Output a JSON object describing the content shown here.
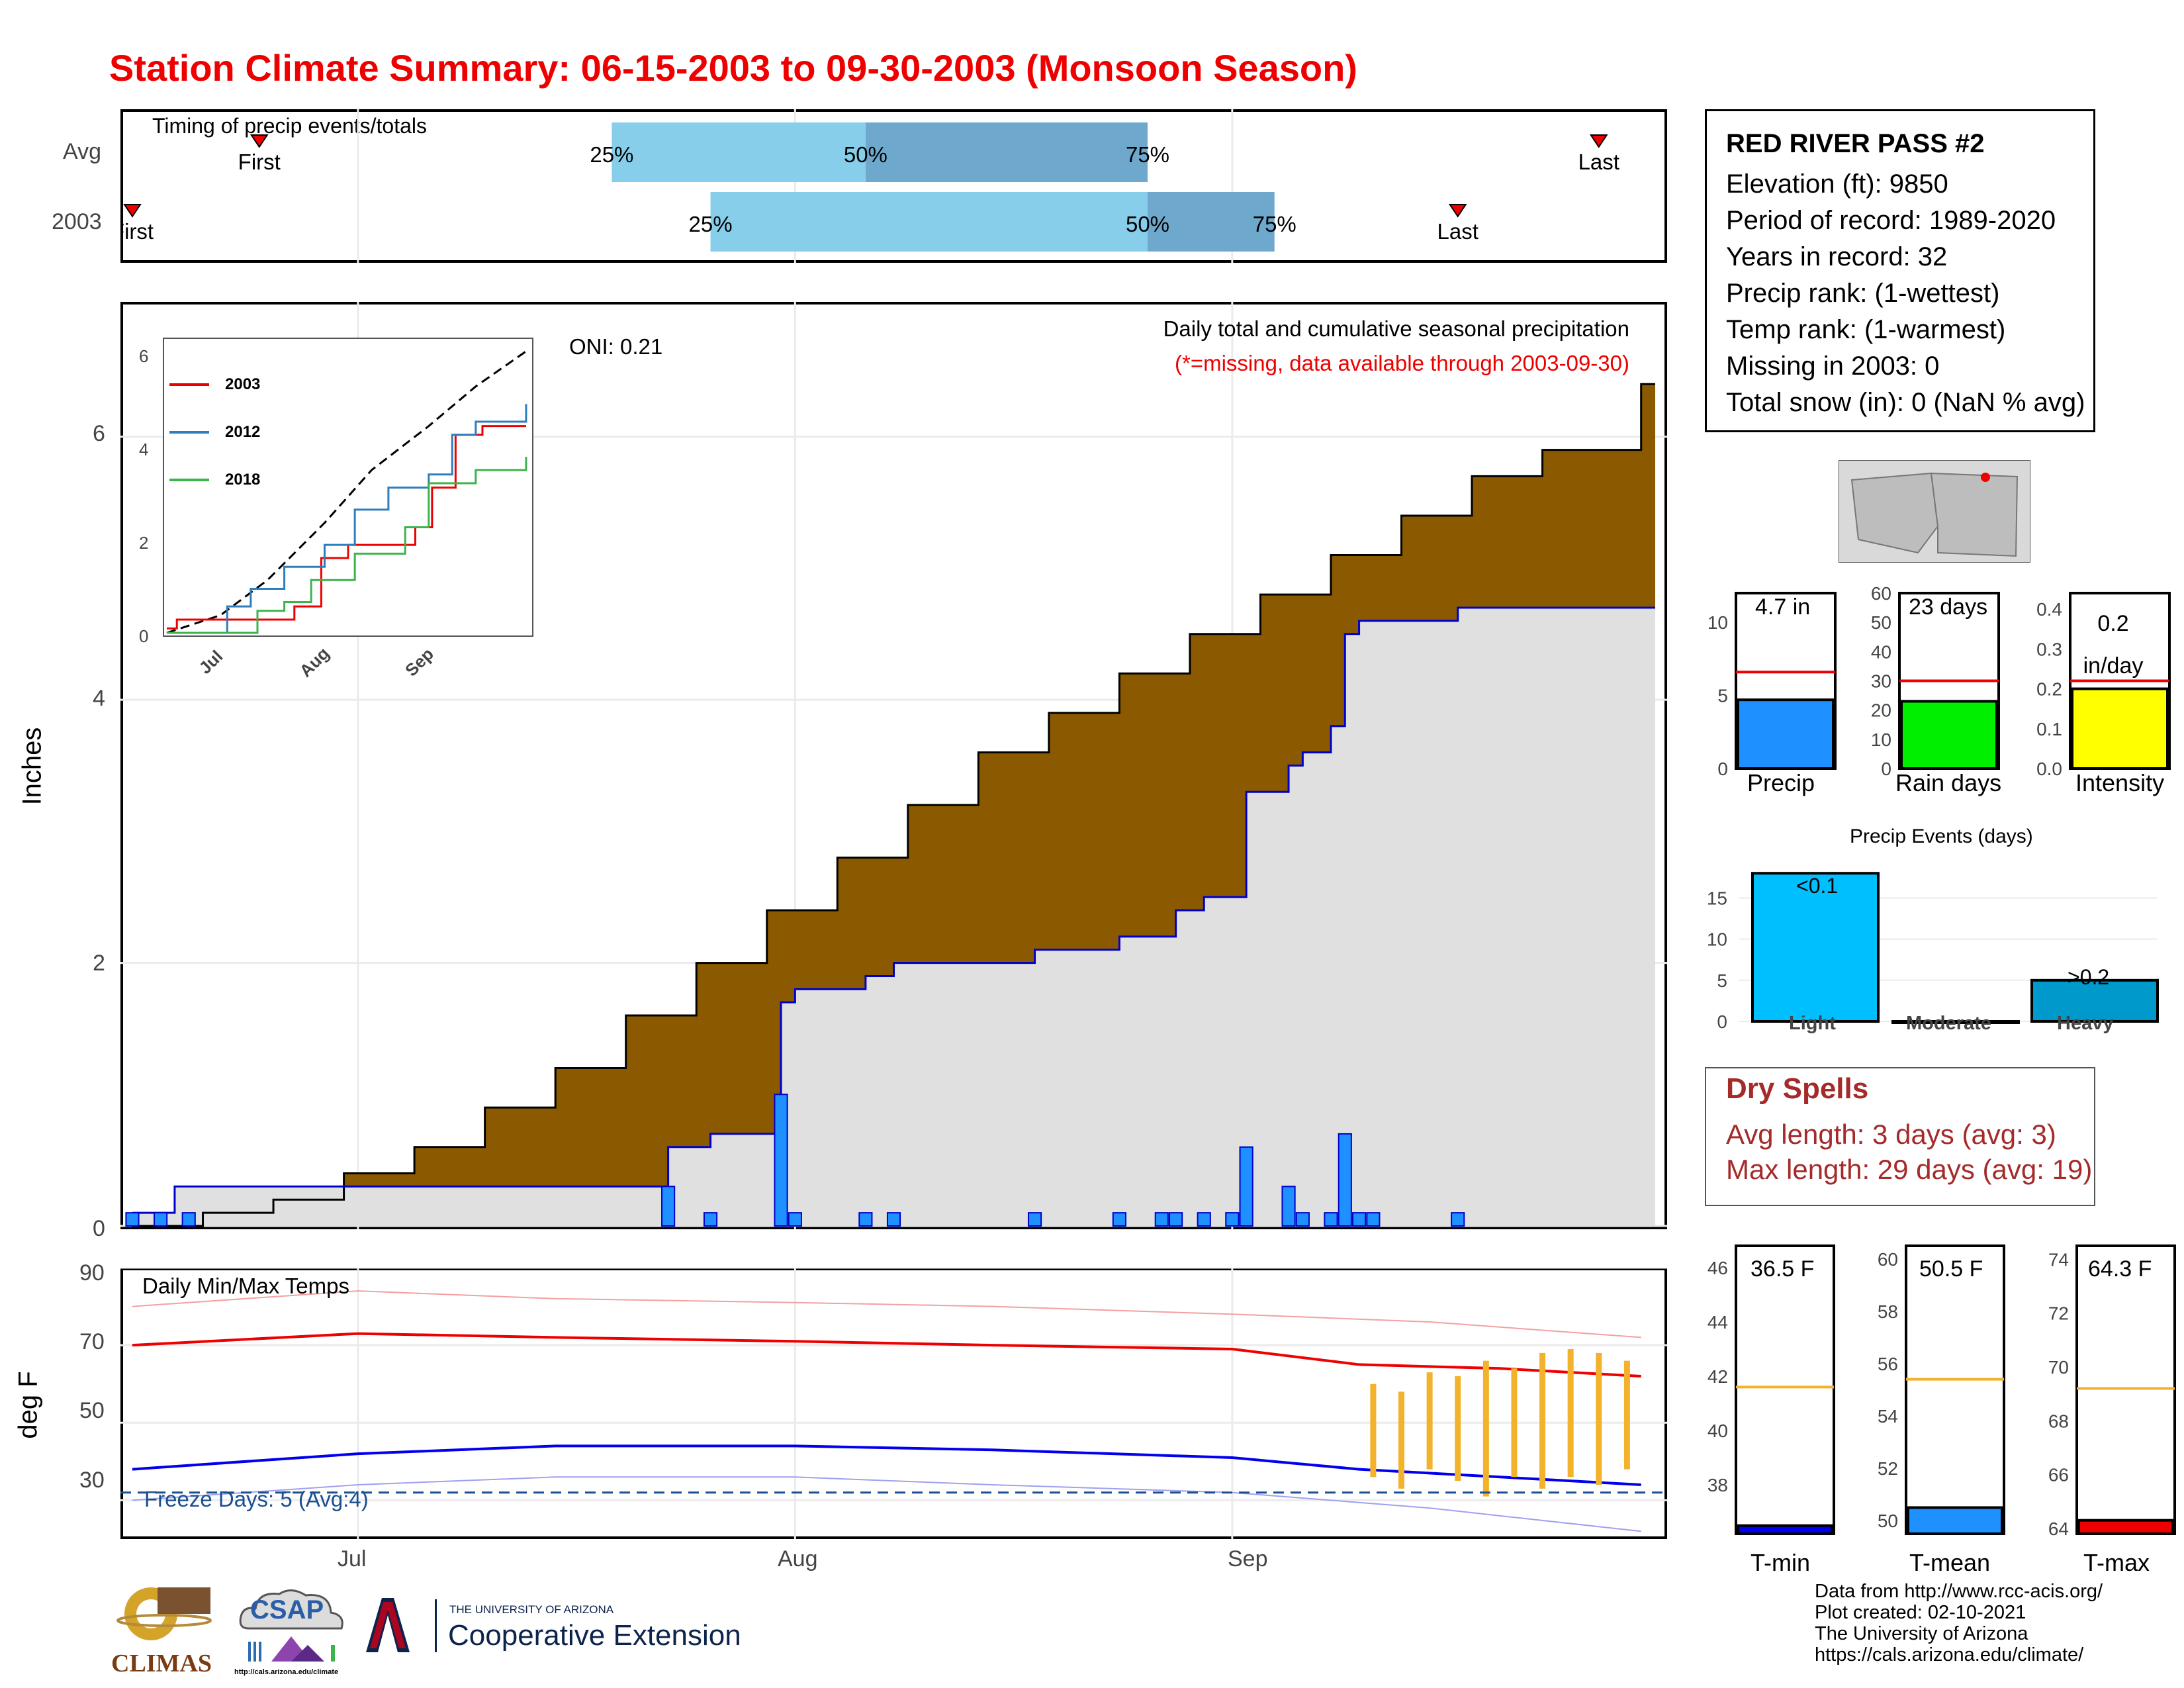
{
  "title": "Station Climate Summary: 06-15-2003 to 09-30-2003 (Monsoon Season)",
  "colors": {
    "title": "#ee0000",
    "cumulative_fill": "#8b5a00",
    "avg_fill": "#e0e0e0",
    "daily_bar": "#1e90ff",
    "avg_line": "#0000cc",
    "quartile_light": "#87ceeb",
    "quartile_dark": "#6fa8cd",
    "tmax": "#ee0000",
    "tmin": "#0000ee",
    "freeze": "#1a4f91",
    "anomaly": "#f2b22c",
    "dry": "#a52a2a"
  },
  "timing": {
    "label": "Timing of precip events/totals",
    "rows": [
      "Avg",
      "2003"
    ],
    "avg": {
      "first_label": "First",
      "last_label": "Last",
      "first": "06-24",
      "last": "09-27",
      "p25": "07-19",
      "p50": "08-06",
      "p75": "08-26"
    },
    "y2003": {
      "first_label": "First",
      "last_label": "Last",
      "first": "06-15",
      "last": "09-17",
      "p25": "07-26",
      "p50": "08-26",
      "p75": "09-04"
    },
    "pct_labels": [
      "25%",
      "50%",
      "75%"
    ]
  },
  "main": {
    "ylabel": "Inches",
    "subtitle": "Daily total and cumulative seasonal precipitation",
    "missing_note": "(*=missing, data available through 2003-09-30)",
    "oni": "ONI: 0.21",
    "y_ticks": [
      "0",
      "2",
      "4",
      "6"
    ]
  },
  "inset": {
    "legend": [
      "2003",
      "2012",
      "2018"
    ],
    "y_ticks": [
      "0",
      "2",
      "4",
      "6"
    ],
    "x_ticks": [
      "Jul",
      "Aug",
      "Sep"
    ]
  },
  "temps": {
    "label": "Daily Min/Max Temps",
    "ylabel": "deg F",
    "freeze": "Freeze Days: 5 (Avg:4)",
    "y_ticks": [
      "30",
      "50",
      "70",
      "90"
    ],
    "x_ticks": [
      "Jul",
      "Aug",
      "Sep"
    ]
  },
  "station": {
    "name": "RED RIVER PASS #2",
    "lines": [
      "Elevation (ft): 9850",
      "Period of record: 1989-2020",
      "Years in record: 32",
      "Precip rank:  (1-wettest)",
      "Temp rank:  (1-warmest)",
      "Missing in 2003: 0",
      "Total snow (in): 0 (NaN % avg)"
    ]
  },
  "summary_bars": [
    {
      "label": "Precip",
      "value_label": "4.7 in",
      "value": 4.7,
      "avg": 6.6,
      "max": 12,
      "ticks": [
        "0",
        "5",
        "10"
      ],
      "color": "#1e90ff"
    },
    {
      "label": "Rain days",
      "value_label": "23 days",
      "value": 23,
      "avg": 30,
      "max": 60,
      "ticks": [
        "0",
        "10",
        "20",
        "30",
        "40",
        "50",
        "60"
      ],
      "color": "#00ee00"
    },
    {
      "label": "Intensity",
      "value_label": "0.2 in/day",
      "value": 0.2,
      "avg": 0.22,
      "max": 0.44,
      "ticks": [
        "0.0",
        "0.1",
        "0.2",
        "0.3",
        "0.4"
      ],
      "color": "#ffff00"
    }
  ],
  "events": {
    "title": "Precip Events (days)",
    "categories": [
      "Light",
      "Moderate",
      "Heavy"
    ],
    "values": [
      18,
      0,
      5
    ],
    "bar_labels": [
      "<0.1",
      "",
      ">0.2"
    ],
    "y_ticks": [
      "0",
      "5",
      "10",
      "15"
    ]
  },
  "dry_spells": {
    "title": "Dry Spells",
    "avg": "Avg length: 3 days (avg: 3)",
    "max": "Max length: 29 days (avg: 19)"
  },
  "temp_bars": [
    {
      "label": "T-min",
      "value_label": "36.5 F",
      "value": 36.5,
      "avg": 41.6,
      "ticks": [
        "38",
        "40",
        "42",
        "44",
        "46"
      ],
      "color": "#0000ee"
    },
    {
      "label": "T-mean",
      "value_label": "50.5 F",
      "value": 50.5,
      "avg": 55.4,
      "ticks": [
        "50",
        "52",
        "54",
        "56",
        "58",
        "60"
      ],
      "color": "#1e90ff"
    },
    {
      "label": "T-max",
      "value_label": "64.3 F",
      "value": 64.3,
      "avg": 69.2,
      "ticks": [
        "64",
        "66",
        "68",
        "70",
        "72",
        "74"
      ],
      "color": "#ee0000"
    }
  ],
  "footer": [
    "Data from http://www.rcc-acis.org/",
    "Plot created: 02-10-2021",
    "The University of Arizona",
    "https://cals.arizona.edu/climate/"
  ],
  "logos": {
    "climas": "CLIMAS",
    "csap": "CSAP",
    "csap_url": "http://cals.arizona.edu/climate",
    "ua_small": "THE UNIVERSITY OF ARIZONA",
    "ua_big": "Cooperative Extension"
  },
  "chart_data": [
    {
      "type": "bar",
      "title": "Daily total and cumulative seasonal precipitation",
      "ylabel": "Inches",
      "x_ticks": [
        "Jul",
        "Aug",
        "Sep"
      ],
      "xlim": [
        "2003-06-15",
        "2003-09-30"
      ],
      "ylim": [
        0,
        7
      ],
      "series": [
        {
          "name": "daily",
          "points": [
            [
              "2003-06-15",
              0.1
            ],
            [
              "2003-06-17",
              0.1
            ],
            [
              "2003-06-19",
              0.1
            ],
            [
              "2003-07-23",
              0.3
            ],
            [
              "2003-07-26",
              0.1
            ],
            [
              "2003-07-31",
              1.0
            ],
            [
              "2003-08-01",
              0.1
            ],
            [
              "2003-08-06",
              0.1
            ],
            [
              "2003-08-08",
              0.1
            ],
            [
              "2003-08-18",
              0.1
            ],
            [
              "2003-08-24",
              0.1
            ],
            [
              "2003-08-27",
              0.1
            ],
            [
              "2003-08-28",
              0.1
            ],
            [
              "2003-08-30",
              0.1
            ],
            [
              "2003-09-01",
              0.1
            ],
            [
              "2003-09-02",
              0.6
            ],
            [
              "2003-09-05",
              0.3
            ],
            [
              "2003-09-06",
              0.1
            ],
            [
              "2003-09-08",
              0.1
            ],
            [
              "2003-09-09",
              0.7
            ],
            [
              "2003-09-10",
              0.1
            ],
            [
              "2003-09-11",
              0.1
            ],
            [
              "2003-09-17",
              0.1
            ]
          ]
        },
        {
          "name": "cumulative",
          "points": [
            [
              "2003-06-15",
              0.1
            ],
            [
              "2003-06-18",
              0.3
            ],
            [
              "2003-07-23",
              0.6
            ],
            [
              "2003-07-26",
              0.7
            ],
            [
              "2003-07-31",
              1.7
            ],
            [
              "2003-08-01",
              1.8
            ],
            [
              "2003-08-06",
              1.9
            ],
            [
              "2003-08-08",
              2.0
            ],
            [
              "2003-08-18",
              2.1
            ],
            [
              "2003-08-24",
              2.2
            ],
            [
              "2003-08-28",
              2.4
            ],
            [
              "2003-08-30",
              2.5
            ],
            [
              "2003-09-02",
              3.3
            ],
            [
              "2003-09-05",
              3.5
            ],
            [
              "2003-09-06",
              3.6
            ],
            [
              "2003-09-08",
              3.8
            ],
            [
              "2003-09-09",
              4.5
            ],
            [
              "2003-09-10",
              4.6
            ],
            [
              "2003-09-17",
              4.7
            ],
            [
              "2003-09-30",
              4.7
            ]
          ]
        },
        {
          "name": "average cumulative",
          "points": [
            [
              "2003-06-15",
              0.0
            ],
            [
              "2003-06-20",
              0.1
            ],
            [
              "2003-06-25",
              0.2
            ],
            [
              "2003-06-30",
              0.4
            ],
            [
              "2003-07-05",
              0.6
            ],
            [
              "2003-07-10",
              0.9
            ],
            [
              "2003-07-15",
              1.2
            ],
            [
              "2003-07-20",
              1.6
            ],
            [
              "2003-07-25",
              2.0
            ],
            [
              "2003-07-30",
              2.4
            ],
            [
              "2003-08-04",
              2.8
            ],
            [
              "2003-08-09",
              3.2
            ],
            [
              "2003-08-14",
              3.6
            ],
            [
              "2003-08-19",
              3.9
            ],
            [
              "2003-08-24",
              4.2
            ],
            [
              "2003-08-29",
              4.5
            ],
            [
              "2003-09-03",
              4.8
            ],
            [
              "2003-09-08",
              5.1
            ],
            [
              "2003-09-13",
              5.4
            ],
            [
              "2003-09-18",
              5.7
            ],
            [
              "2003-09-23",
              5.9
            ],
            [
              "2003-09-30",
              6.4
            ]
          ]
        }
      ]
    },
    {
      "type": "line",
      "ylim": [
        0,
        6.5
      ],
      "x_ticks": [
        "Jul",
        "Aug",
        "Sep"
      ],
      "series": [
        {
          "name": "average",
          "points": [
            [
              "2003-06-15",
              0.0
            ],
            [
              "2003-07-01",
              0.4
            ],
            [
              "2003-07-15",
              1.2
            ],
            [
              "2003-08-01",
              2.5
            ],
            [
              "2003-08-15",
              3.7
            ],
            [
              "2003-09-01",
              4.7
            ],
            [
              "2003-09-15",
              5.6
            ],
            [
              "2003-09-30",
              6.4
            ]
          ]
        },
        {
          "name": "2003",
          "points": [
            [
              "2003-06-15",
              0.1
            ],
            [
              "2003-06-18",
              0.3
            ],
            [
              "2003-07-23",
              0.6
            ],
            [
              "2003-07-31",
              1.7
            ],
            [
              "2003-08-08",
              2.0
            ],
            [
              "2003-08-28",
              2.4
            ],
            [
              "2003-09-02",
              3.3
            ],
            [
              "2003-09-09",
              4.5
            ],
            [
              "2003-09-17",
              4.7
            ],
            [
              "2003-09-30",
              4.7
            ]
          ]
        },
        {
          "name": "2012",
          "points": [
            [
              "2003-06-15",
              0.0
            ],
            [
              "2003-07-01",
              0.0
            ],
            [
              "2003-07-03",
              0.6
            ],
            [
              "2003-07-10",
              1.0
            ],
            [
              "2003-07-20",
              1.5
            ],
            [
              "2003-08-01",
              2.0
            ],
            [
              "2003-08-10",
              2.8
            ],
            [
              "2003-08-20",
              3.3
            ],
            [
              "2003-09-01",
              3.6
            ],
            [
              "2003-09-08",
              4.5
            ],
            [
              "2003-09-15",
              4.8
            ],
            [
              "2003-09-30",
              5.2
            ]
          ]
        },
        {
          "name": "2018",
          "points": [
            [
              "2003-06-15",
              0.0
            ],
            [
              "2003-07-08",
              0.0
            ],
            [
              "2003-07-12",
              0.5
            ],
            [
              "2003-07-20",
              0.7
            ],
            [
              "2003-07-28",
              1.2
            ],
            [
              "2003-08-10",
              1.8
            ],
            [
              "2003-08-25",
              2.4
            ],
            [
              "2003-09-01",
              3.4
            ],
            [
              "2003-09-15",
              3.7
            ],
            [
              "2003-09-30",
              4.0
            ]
          ]
        }
      ]
    },
    {
      "type": "line",
      "title": "Daily Min/Max Temps",
      "ylabel": "deg F",
      "ylim": [
        20,
        90
      ],
      "x_ticks": [
        "Jul",
        "Aug",
        "Sep"
      ],
      "series": [
        {
          "name": "avg max",
          "points": [
            [
              "2003-06-15",
              70
            ],
            [
              "2003-07-01",
              73
            ],
            [
              "2003-07-15",
              72
            ],
            [
              "2003-08-01",
              71
            ],
            [
              "2003-08-15",
              70
            ],
            [
              "2003-09-01",
              69
            ],
            [
              "2003-09-10",
              65
            ],
            [
              "2003-09-20",
              64
            ],
            [
              "2003-09-30",
              62
            ]
          ]
        },
        {
          "name": "avg min",
          "points": [
            [
              "2003-06-15",
              38
            ],
            [
              "2003-07-01",
              42
            ],
            [
              "2003-07-15",
              44
            ],
            [
              "2003-08-01",
              44
            ],
            [
              "2003-08-15",
              43
            ],
            [
              "2003-09-01",
              41
            ],
            [
              "2003-09-10",
              38
            ],
            [
              "2003-09-20",
              36
            ],
            [
              "2003-09-30",
              34
            ]
          ]
        },
        {
          "name": "record max",
          "points": [
            [
              "2003-06-15",
              80
            ],
            [
              "2003-07-01",
              84
            ],
            [
              "2003-07-15",
              82
            ],
            [
              "2003-08-01",
              81
            ],
            [
              "2003-08-15",
              80
            ],
            [
              "2003-09-01",
              78
            ],
            [
              "2003-09-15",
              76
            ],
            [
              "2003-09-30",
              72
            ]
          ]
        },
        {
          "name": "record min",
          "points": [
            [
              "2003-06-15",
              30
            ],
            [
              "2003-07-01",
              34
            ],
            [
              "2003-07-15",
              36
            ],
            [
              "2003-08-01",
              36
            ],
            [
              "2003-08-15",
              34
            ],
            [
              "2003-09-01",
              32
            ],
            [
              "2003-09-15",
              28
            ],
            [
              "2003-09-30",
              22
            ]
          ]
        },
        {
          "name": "2003 range",
          "points": [
            [
              "2003-09-11",
              36,
              60
            ],
            [
              "2003-09-13",
              33,
              58
            ],
            [
              "2003-09-15",
              38,
              63
            ],
            [
              "2003-09-17",
              35,
              62
            ],
            [
              "2003-09-19",
              31,
              66
            ],
            [
              "2003-09-21",
              36,
              64
            ],
            [
              "2003-09-23",
              33,
              68
            ],
            [
              "2003-09-25",
              36,
              69
            ],
            [
              "2003-09-27",
              34,
              68
            ],
            [
              "2003-09-29",
              38,
              66
            ]
          ]
        }
      ],
      "freeze_line": 32
    }
  ]
}
